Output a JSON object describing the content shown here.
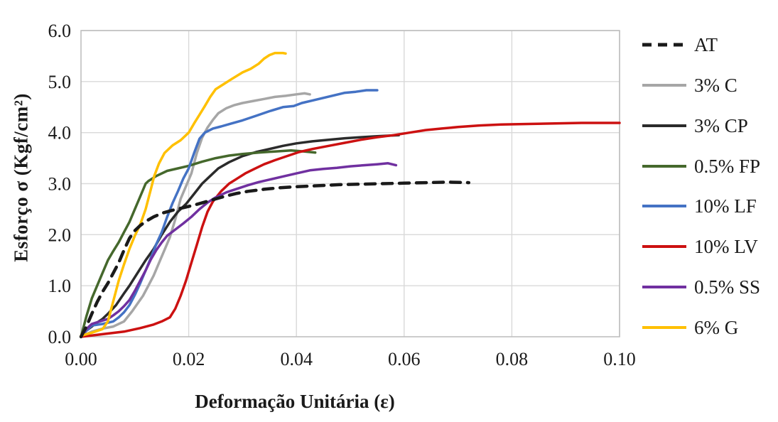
{
  "figure": {
    "background": "#ffffff",
    "text_color": "#1a1a1a",
    "grid_color": "#d9d9d9",
    "border_color": "#bfbfbf"
  },
  "chart_data": {
    "type": "line",
    "title": "",
    "xlabel": "Deformação Unitária (ε)",
    "ylabel": "Esforço σ (Kgf/cm²)",
    "xlim": [
      0,
      0.1
    ],
    "ylim": [
      0,
      6.0
    ],
    "grid": true,
    "legend_position": "right",
    "x_ticks": [
      {
        "value": 0.0,
        "label": "0.00"
      },
      {
        "value": 0.02,
        "label": "0.02"
      },
      {
        "value": 0.04,
        "label": "0.04"
      },
      {
        "value": 0.06,
        "label": "0.06"
      },
      {
        "value": 0.08,
        "label": "0.08"
      },
      {
        "value": 0.1,
        "label": "0.10"
      }
    ],
    "y_ticks": [
      {
        "value": 0.0,
        "label": "0.0"
      },
      {
        "value": 1.0,
        "label": "1.0"
      },
      {
        "value": 2.0,
        "label": "2.0"
      },
      {
        "value": 3.0,
        "label": "3.0"
      },
      {
        "value": 4.0,
        "label": "4.0"
      },
      {
        "value": 5.0,
        "label": "5.0"
      },
      {
        "value": 6.0,
        "label": "6.0"
      }
    ],
    "series": [
      {
        "id": "at",
        "name": "AT",
        "color": "#1a1a1a",
        "width": 4.5,
        "dash": "14 10",
        "points": [
          [
            0,
            0
          ],
          [
            0.001,
            0.2
          ],
          [
            0.002,
            0.45
          ],
          [
            0.003,
            0.68
          ],
          [
            0.004,
            0.88
          ],
          [
            0.005,
            1.05
          ],
          [
            0.006,
            1.25
          ],
          [
            0.007,
            1.45
          ],
          [
            0.008,
            1.7
          ],
          [
            0.009,
            1.93
          ],
          [
            0.01,
            2.08
          ],
          [
            0.011,
            2.18
          ],
          [
            0.012,
            2.26
          ],
          [
            0.0135,
            2.35
          ],
          [
            0.015,
            2.42
          ],
          [
            0.017,
            2.48
          ],
          [
            0.019,
            2.53
          ],
          [
            0.021,
            2.58
          ],
          [
            0.023,
            2.64
          ],
          [
            0.025,
            2.7
          ],
          [
            0.027,
            2.76
          ],
          [
            0.029,
            2.81
          ],
          [
            0.031,
            2.85
          ],
          [
            0.034,
            2.89
          ],
          [
            0.037,
            2.92
          ],
          [
            0.04,
            2.94
          ],
          [
            0.044,
            2.96
          ],
          [
            0.048,
            2.98
          ],
          [
            0.052,
            2.99
          ],
          [
            0.056,
            3.0
          ],
          [
            0.06,
            3.01
          ],
          [
            0.064,
            3.02
          ],
          [
            0.068,
            3.03
          ],
          [
            0.072,
            3.02
          ]
        ]
      },
      {
        "id": "3c",
        "name": "3% C",
        "color": "#a6a6a6",
        "width": 3.5,
        "dash": null,
        "points": [
          [
            0,
            0
          ],
          [
            0.002,
            0.1
          ],
          [
            0.004,
            0.16
          ],
          [
            0.006,
            0.2
          ],
          [
            0.008,
            0.3
          ],
          [
            0.0095,
            0.5
          ],
          [
            0.0105,
            0.65
          ],
          [
            0.0115,
            0.8
          ],
          [
            0.0125,
            1.0
          ],
          [
            0.0135,
            1.2
          ],
          [
            0.0145,
            1.45
          ],
          [
            0.0155,
            1.7
          ],
          [
            0.0165,
            1.95
          ],
          [
            0.0175,
            2.3
          ],
          [
            0.0185,
            2.7
          ],
          [
            0.0195,
            2.95
          ],
          [
            0.0205,
            3.2
          ],
          [
            0.0215,
            3.6
          ],
          [
            0.0225,
            3.9
          ],
          [
            0.0235,
            4.1
          ],
          [
            0.0245,
            4.25
          ],
          [
            0.0255,
            4.38
          ],
          [
            0.027,
            4.48
          ],
          [
            0.0285,
            4.54
          ],
          [
            0.03,
            4.58
          ],
          [
            0.032,
            4.62
          ],
          [
            0.034,
            4.66
          ],
          [
            0.036,
            4.7
          ],
          [
            0.038,
            4.72
          ],
          [
            0.04,
            4.75
          ],
          [
            0.0415,
            4.77
          ],
          [
            0.0425,
            4.75
          ]
        ]
      },
      {
        "id": "3cp",
        "name": "3% CP",
        "color": "#2b2b2b",
        "width": 3.5,
        "dash": null,
        "points": [
          [
            0,
            0
          ],
          [
            0.001,
            0.12
          ],
          [
            0.002,
            0.2
          ],
          [
            0.003,
            0.28
          ],
          [
            0.004,
            0.35
          ],
          [
            0.005,
            0.45
          ],
          [
            0.0065,
            0.62
          ],
          [
            0.008,
            0.85
          ],
          [
            0.009,
            1.0
          ],
          [
            0.0105,
            1.25
          ],
          [
            0.012,
            1.5
          ],
          [
            0.0135,
            1.72
          ],
          [
            0.015,
            2.0
          ],
          [
            0.0165,
            2.25
          ],
          [
            0.018,
            2.45
          ],
          [
            0.0195,
            2.6
          ],
          [
            0.021,
            2.8
          ],
          [
            0.0225,
            3.0
          ],
          [
            0.024,
            3.15
          ],
          [
            0.0255,
            3.3
          ],
          [
            0.0275,
            3.42
          ],
          [
            0.03,
            3.54
          ],
          [
            0.0325,
            3.62
          ],
          [
            0.035,
            3.68
          ],
          [
            0.0375,
            3.74
          ],
          [
            0.04,
            3.79
          ],
          [
            0.043,
            3.83
          ],
          [
            0.046,
            3.86
          ],
          [
            0.049,
            3.89
          ],
          [
            0.052,
            3.91
          ],
          [
            0.055,
            3.93
          ],
          [
            0.059,
            3.95
          ]
        ]
      },
      {
        "id": "05fp",
        "name": "0.5% FP",
        "color": "#45682c",
        "width": 3.5,
        "dash": null,
        "points": [
          [
            0,
            0
          ],
          [
            0.001,
            0.4
          ],
          [
            0.002,
            0.75
          ],
          [
            0.003,
            1.0
          ],
          [
            0.004,
            1.25
          ],
          [
            0.005,
            1.5
          ],
          [
            0.006,
            1.68
          ],
          [
            0.007,
            1.85
          ],
          [
            0.008,
            2.05
          ],
          [
            0.009,
            2.25
          ],
          [
            0.01,
            2.5
          ],
          [
            0.011,
            2.75
          ],
          [
            0.012,
            3.0
          ],
          [
            0.0125,
            3.05
          ],
          [
            0.014,
            3.15
          ],
          [
            0.016,
            3.25
          ],
          [
            0.018,
            3.3
          ],
          [
            0.02,
            3.35
          ],
          [
            0.0225,
            3.43
          ],
          [
            0.025,
            3.5
          ],
          [
            0.0275,
            3.55
          ],
          [
            0.03,
            3.58
          ],
          [
            0.033,
            3.61
          ],
          [
            0.036,
            3.63
          ],
          [
            0.039,
            3.65
          ],
          [
            0.0415,
            3.63
          ],
          [
            0.0435,
            3.61
          ]
        ]
      },
      {
        "id": "10lf",
        "name": "10% LF",
        "color": "#4472c4",
        "width": 3.5,
        "dash": null,
        "points": [
          [
            0,
            0
          ],
          [
            0.001,
            0.12
          ],
          [
            0.002,
            0.22
          ],
          [
            0.004,
            0.25
          ],
          [
            0.006,
            0.3
          ],
          [
            0.007,
            0.38
          ],
          [
            0.008,
            0.48
          ],
          [
            0.009,
            0.62
          ],
          [
            0.01,
            0.82
          ],
          [
            0.011,
            1.05
          ],
          [
            0.012,
            1.3
          ],
          [
            0.013,
            1.55
          ],
          [
            0.014,
            1.82
          ],
          [
            0.015,
            2.05
          ],
          [
            0.016,
            2.35
          ],
          [
            0.017,
            2.62
          ],
          [
            0.018,
            2.85
          ],
          [
            0.019,
            3.1
          ],
          [
            0.02,
            3.3
          ],
          [
            0.021,
            3.6
          ],
          [
            0.022,
            3.88
          ],
          [
            0.023,
            4.0
          ],
          [
            0.0245,
            4.08
          ],
          [
            0.026,
            4.12
          ],
          [
            0.028,
            4.18
          ],
          [
            0.03,
            4.24
          ],
          [
            0.0325,
            4.33
          ],
          [
            0.035,
            4.42
          ],
          [
            0.0375,
            4.5
          ],
          [
            0.0395,
            4.52
          ],
          [
            0.041,
            4.58
          ],
          [
            0.043,
            4.63
          ],
          [
            0.045,
            4.68
          ],
          [
            0.047,
            4.73
          ],
          [
            0.049,
            4.78
          ],
          [
            0.051,
            4.8
          ],
          [
            0.053,
            4.83
          ],
          [
            0.055,
            4.83
          ]
        ]
      },
      {
        "id": "10lv",
        "name": "10% LV",
        "color": "#cc1111",
        "width": 3.5,
        "dash": null,
        "points": [
          [
            0,
            0
          ],
          [
            0.004,
            0.05
          ],
          [
            0.008,
            0.1
          ],
          [
            0.011,
            0.17
          ],
          [
            0.0135,
            0.24
          ],
          [
            0.015,
            0.3
          ],
          [
            0.0165,
            0.38
          ],
          [
            0.0175,
            0.55
          ],
          [
            0.0185,
            0.8
          ],
          [
            0.0195,
            1.1
          ],
          [
            0.0205,
            1.45
          ],
          [
            0.0215,
            1.8
          ],
          [
            0.0225,
            2.15
          ],
          [
            0.0235,
            2.45
          ],
          [
            0.0245,
            2.65
          ],
          [
            0.026,
            2.85
          ],
          [
            0.0275,
            3.0
          ],
          [
            0.029,
            3.1
          ],
          [
            0.0305,
            3.2
          ],
          [
            0.032,
            3.28
          ],
          [
            0.034,
            3.38
          ],
          [
            0.036,
            3.46
          ],
          [
            0.038,
            3.53
          ],
          [
            0.0405,
            3.62
          ],
          [
            0.043,
            3.68
          ],
          [
            0.046,
            3.74
          ],
          [
            0.049,
            3.8
          ],
          [
            0.052,
            3.86
          ],
          [
            0.055,
            3.91
          ],
          [
            0.058,
            3.95
          ],
          [
            0.061,
            4.0
          ],
          [
            0.064,
            4.05
          ],
          [
            0.067,
            4.08
          ],
          [
            0.07,
            4.11
          ],
          [
            0.074,
            4.14
          ],
          [
            0.078,
            4.16
          ],
          [
            0.083,
            4.17
          ],
          [
            0.088,
            4.18
          ],
          [
            0.093,
            4.19
          ],
          [
            0.1,
            4.19
          ]
        ]
      },
      {
        "id": "05ss",
        "name": "0.5% SS",
        "color": "#7030a0",
        "width": 3.5,
        "dash": null,
        "points": [
          [
            0,
            0
          ],
          [
            0.001,
            0.15
          ],
          [
            0.002,
            0.25
          ],
          [
            0.0035,
            0.3
          ],
          [
            0.005,
            0.35
          ],
          [
            0.006,
            0.42
          ],
          [
            0.007,
            0.5
          ],
          [
            0.008,
            0.6
          ],
          [
            0.009,
            0.72
          ],
          [
            0.01,
            0.9
          ],
          [
            0.011,
            1.1
          ],
          [
            0.012,
            1.3
          ],
          [
            0.013,
            1.52
          ],
          [
            0.014,
            1.7
          ],
          [
            0.015,
            1.85
          ],
          [
            0.016,
            1.98
          ],
          [
            0.0175,
            2.1
          ],
          [
            0.019,
            2.22
          ],
          [
            0.0205,
            2.35
          ],
          [
            0.022,
            2.5
          ],
          [
            0.0235,
            2.63
          ],
          [
            0.025,
            2.73
          ],
          [
            0.027,
            2.83
          ],
          [
            0.029,
            2.9
          ],
          [
            0.031,
            2.97
          ],
          [
            0.033,
            3.03
          ],
          [
            0.035,
            3.08
          ],
          [
            0.0375,
            3.14
          ],
          [
            0.04,
            3.2
          ],
          [
            0.0425,
            3.26
          ],
          [
            0.045,
            3.29
          ],
          [
            0.0475,
            3.31
          ],
          [
            0.05,
            3.34
          ],
          [
            0.0525,
            3.36
          ],
          [
            0.055,
            3.38
          ],
          [
            0.057,
            3.4
          ],
          [
            0.0585,
            3.36
          ]
        ]
      },
      {
        "id": "6g",
        "name": "6% G",
        "color": "#ffc000",
        "width": 3.5,
        "dash": null,
        "points": [
          [
            0,
            0.02
          ],
          [
            0.002,
            0.08
          ],
          [
            0.004,
            0.15
          ],
          [
            0.005,
            0.3
          ],
          [
            0.006,
            0.7
          ],
          [
            0.007,
            1.1
          ],
          [
            0.008,
            1.42
          ],
          [
            0.009,
            1.72
          ],
          [
            0.01,
            1.98
          ],
          [
            0.011,
            2.2
          ],
          [
            0.012,
            2.5
          ],
          [
            0.013,
            2.9
          ],
          [
            0.0136,
            3.15
          ],
          [
            0.0145,
            3.4
          ],
          [
            0.0155,
            3.6
          ],
          [
            0.017,
            3.75
          ],
          [
            0.0185,
            3.85
          ],
          [
            0.02,
            4.0
          ],
          [
            0.021,
            4.18
          ],
          [
            0.022,
            4.35
          ],
          [
            0.023,
            4.52
          ],
          [
            0.024,
            4.7
          ],
          [
            0.025,
            4.85
          ],
          [
            0.0265,
            4.95
          ],
          [
            0.028,
            5.05
          ],
          [
            0.03,
            5.18
          ],
          [
            0.0315,
            5.25
          ],
          [
            0.033,
            5.35
          ],
          [
            0.034,
            5.45
          ],
          [
            0.035,
            5.52
          ],
          [
            0.036,
            5.56
          ],
          [
            0.0375,
            5.56
          ],
          [
            0.038,
            5.55
          ]
        ]
      }
    ]
  }
}
